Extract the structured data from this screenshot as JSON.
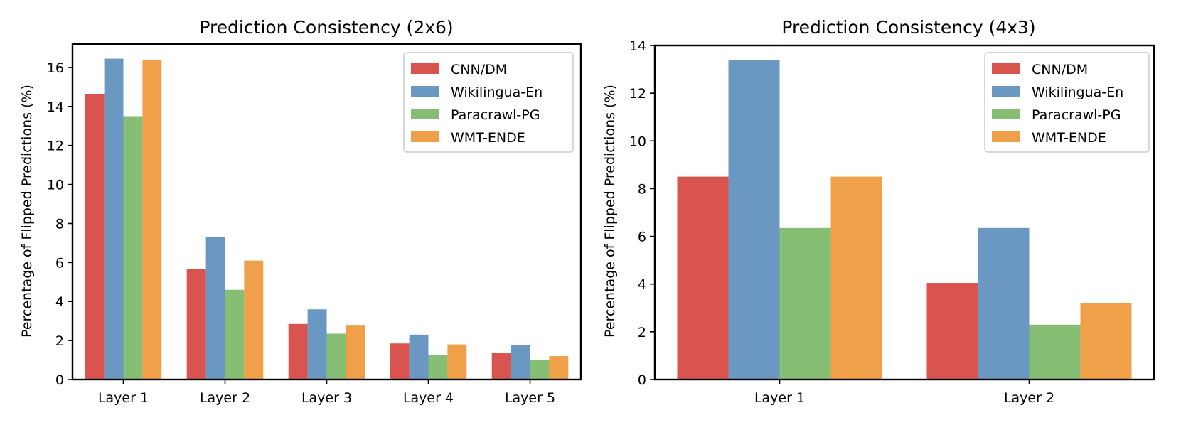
{
  "chart_data": [
    {
      "type": "bar",
      "title": "Prediction Consistency (2x6)",
      "xlabel": "",
      "ylabel": "Percentage of Flipped Predictions (%)",
      "categories": [
        "Layer 1",
        "Layer 2",
        "Layer 3",
        "Layer 4",
        "Layer 5"
      ],
      "ylim": [
        0,
        17.2
      ],
      "yticks": [
        0,
        2,
        4,
        6,
        8,
        10,
        12,
        14,
        16
      ],
      "legend_position": "top-right",
      "grid": false,
      "series": [
        {
          "name": "CNN/DM",
          "color": "#d9544f",
          "values": [
            14.65,
            5.65,
            2.85,
            1.85,
            1.35
          ]
        },
        {
          "name": "Wikilingua-En",
          "color": "#6b98c3",
          "values": [
            16.45,
            7.3,
            3.6,
            2.3,
            1.75
          ]
        },
        {
          "name": "Paracrawl-PG",
          "color": "#86bf73",
          "values": [
            13.5,
            4.6,
            2.35,
            1.25,
            1.0
          ]
        },
        {
          "name": "WMT-ENDE",
          "color": "#f0a049",
          "values": [
            16.4,
            6.1,
            2.8,
            1.8,
            1.2
          ]
        }
      ]
    },
    {
      "type": "bar",
      "title": "Prediction Consistency (4x3)",
      "xlabel": "",
      "ylabel": "Percentage of Flipped Predictions (%)",
      "categories": [
        "Layer 1",
        "Layer 2"
      ],
      "ylim": [
        0,
        14.0
      ],
      "yticks": [
        0,
        2,
        4,
        6,
        8,
        10,
        12,
        14
      ],
      "legend_position": "top-right",
      "grid": false,
      "series": [
        {
          "name": "CNN/DM",
          "color": "#d9544f",
          "values": [
            8.5,
            4.05
          ]
        },
        {
          "name": "Wikilingua-En",
          "color": "#6b98c3",
          "values": [
            13.4,
            6.35
          ]
        },
        {
          "name": "Paracrawl-PG",
          "color": "#86bf73",
          "values": [
            6.35,
            2.3
          ]
        },
        {
          "name": "WMT-ENDE",
          "color": "#f0a049",
          "values": [
            8.5,
            3.2
          ]
        }
      ]
    }
  ]
}
